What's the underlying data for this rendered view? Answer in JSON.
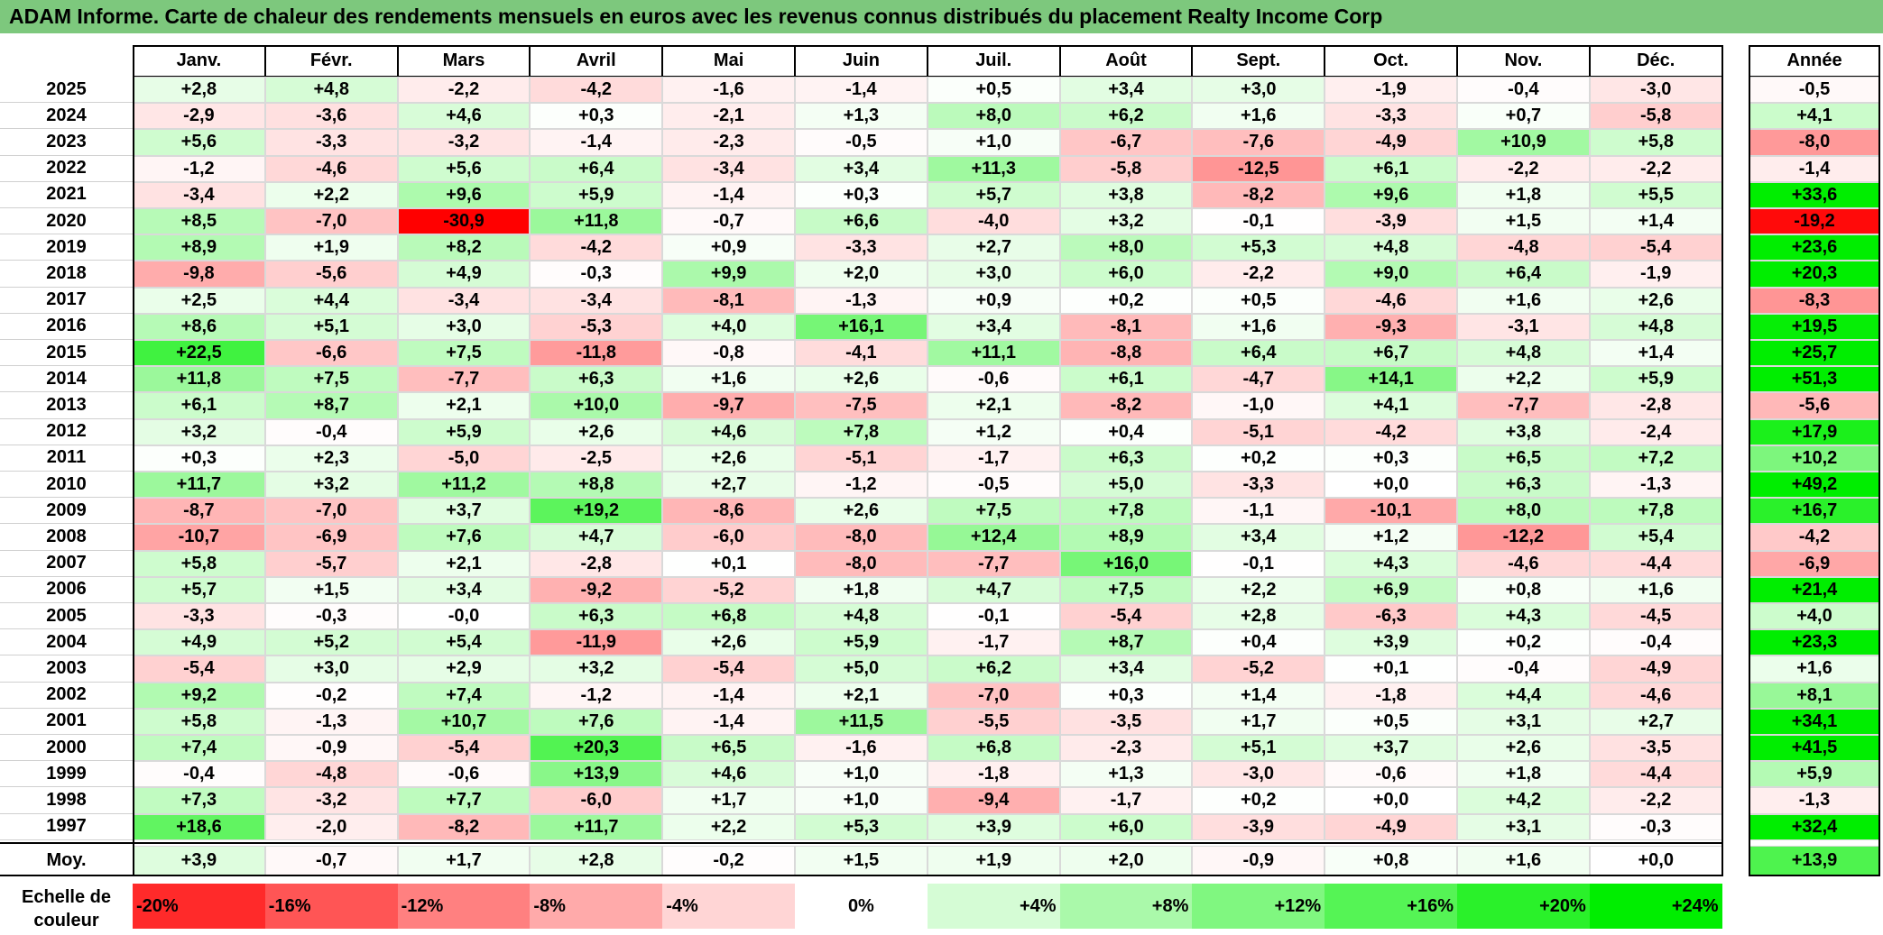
{
  "title": "ADAM Informe. Carte de chaleur des rendements mensuels en euros avec les revenus connus distribués du placement Realty Income Corp",
  "chart_data": {
    "type": "heatmap",
    "columns": [
      "Janv.",
      "Févr.",
      "Mars",
      "Avril",
      "Mai",
      "Juin",
      "Juil.",
      "Août",
      "Sept.",
      "Oct.",
      "Nov.",
      "Déc."
    ],
    "year_column": "Année",
    "rows": [
      {
        "year": "2025",
        "values": [
          "+2,8",
          "+4,8",
          "-2,2",
          "-4,2",
          "-1,6",
          "-1,4",
          "+0,5",
          "+3,4",
          "+3,0",
          "-1,9",
          "-0,4",
          "-3,0"
        ],
        "annual": "-0,5"
      },
      {
        "year": "2024",
        "values": [
          "-2,9",
          "-3,6",
          "+4,6",
          "+0,3",
          "-2,1",
          "+1,3",
          "+8,0",
          "+6,2",
          "+1,6",
          "-3,3",
          "+0,7",
          "-5,8"
        ],
        "annual": "+4,1"
      },
      {
        "year": "2023",
        "values": [
          "+5,6",
          "-3,3",
          "-3,2",
          "-1,4",
          "-2,3",
          "-0,5",
          "+1,0",
          "-6,7",
          "-7,6",
          "-4,9",
          "+10,9",
          "+5,8"
        ],
        "annual": "-8,0"
      },
      {
        "year": "2022",
        "values": [
          "-1,2",
          "-4,6",
          "+5,6",
          "+6,4",
          "-3,4",
          "+3,4",
          "+11,3",
          "-5,8",
          "-12,5",
          "+6,1",
          "-2,2",
          "-2,2"
        ],
        "annual": "-1,4"
      },
      {
        "year": "2021",
        "values": [
          "-3,4",
          "+2,2",
          "+9,6",
          "+5,9",
          "-1,4",
          "+0,3",
          "+5,7",
          "+3,8",
          "-8,2",
          "+9,6",
          "+1,8",
          "+5,5"
        ],
        "annual": "+33,6"
      },
      {
        "year": "2020",
        "values": [
          "+8,5",
          "-7,0",
          "-30,9",
          "+11,8",
          "-0,7",
          "+6,6",
          "-4,0",
          "+3,2",
          "-0,1",
          "-3,9",
          "+1,5",
          "+1,4"
        ],
        "annual": "-19,2"
      },
      {
        "year": "2019",
        "values": [
          "+8,9",
          "+1,9",
          "+8,2",
          "-4,2",
          "+0,9",
          "-3,3",
          "+2,7",
          "+8,0",
          "+5,3",
          "+4,8",
          "-4,8",
          "-5,4"
        ],
        "annual": "+23,6"
      },
      {
        "year": "2018",
        "values": [
          "-9,8",
          "-5,6",
          "+4,9",
          "-0,3",
          "+9,9",
          "+2,0",
          "+3,0",
          "+6,0",
          "-2,2",
          "+9,0",
          "+6,4",
          "-1,9"
        ],
        "annual": "+20,3"
      },
      {
        "year": "2017",
        "values": [
          "+2,5",
          "+4,4",
          "-3,4",
          "-3,4",
          "-8,1",
          "-1,3",
          "+0,9",
          "+0,2",
          "+0,5",
          "-4,6",
          "+1,6",
          "+2,6"
        ],
        "annual": "-8,3"
      },
      {
        "year": "2016",
        "values": [
          "+8,6",
          "+5,1",
          "+3,0",
          "-5,3",
          "+4,0",
          "+16,1",
          "+3,4",
          "-8,1",
          "+1,6",
          "-9,3",
          "-3,1",
          "+4,8"
        ],
        "annual": "+19,5"
      },
      {
        "year": "2015",
        "values": [
          "+22,5",
          "-6,6",
          "+7,5",
          "-11,8",
          "-0,8",
          "-4,1",
          "+11,1",
          "-8,8",
          "+6,4",
          "+6,7",
          "+4,8",
          "+1,4"
        ],
        "annual": "+25,7"
      },
      {
        "year": "2014",
        "values": [
          "+11,8",
          "+7,5",
          "-7,7",
          "+6,3",
          "+1,6",
          "+2,6",
          "-0,6",
          "+6,1",
          "-4,7",
          "+14,1",
          "+2,2",
          "+5,9"
        ],
        "annual": "+51,3"
      },
      {
        "year": "2013",
        "values": [
          "+6,1",
          "+8,7",
          "+2,1",
          "+10,0",
          "-9,7",
          "-7,5",
          "+2,1",
          "-8,2",
          "-1,0",
          "+4,1",
          "-7,7",
          "-2,8"
        ],
        "annual": "-5,6"
      },
      {
        "year": "2012",
        "values": [
          "+3,2",
          "-0,4",
          "+5,9",
          "+2,6",
          "+4,6",
          "+7,8",
          "+1,2",
          "+0,4",
          "-5,1",
          "-4,2",
          "+3,8",
          "-2,4"
        ],
        "annual": "+17,9"
      },
      {
        "year": "2011",
        "values": [
          "+0,3",
          "+2,3",
          "-5,0",
          "-2,5",
          "+2,6",
          "-5,1",
          "-1,7",
          "+6,3",
          "+0,2",
          "+0,3",
          "+6,5",
          "+7,2"
        ],
        "annual": "+10,2"
      },
      {
        "year": "2010",
        "values": [
          "+11,7",
          "+3,2",
          "+11,2",
          "+8,8",
          "+2,7",
          "-1,2",
          "-0,5",
          "+5,0",
          "-3,3",
          "+0,0",
          "+6,3",
          "-1,3"
        ],
        "annual": "+49,2"
      },
      {
        "year": "2009",
        "values": [
          "-8,7",
          "-7,0",
          "+3,7",
          "+19,2",
          "-8,6",
          "+2,6",
          "+7,5",
          "+7,8",
          "-1,1",
          "-10,1",
          "+8,0",
          "+7,8"
        ],
        "annual": "+16,7"
      },
      {
        "year": "2008",
        "values": [
          "-10,7",
          "-6,9",
          "+7,6",
          "+4,7",
          "-6,0",
          "-8,0",
          "+12,4",
          "+8,9",
          "+3,4",
          "+1,2",
          "-12,2",
          "+5,4"
        ],
        "annual": "-4,2"
      },
      {
        "year": "2007",
        "values": [
          "+5,8",
          "-5,7",
          "+2,1",
          "-2,8",
          "+0,1",
          "-8,0",
          "-7,7",
          "+16,0",
          "-0,1",
          "+4,3",
          "-4,6",
          "-4,4"
        ],
        "annual": "-6,9"
      },
      {
        "year": "2006",
        "values": [
          "+5,7",
          "+1,5",
          "+3,4",
          "-9,2",
          "-5,2",
          "+1,8",
          "+4,7",
          "+7,5",
          "+2,2",
          "+6,9",
          "+0,8",
          "+1,6"
        ],
        "annual": "+21,4"
      },
      {
        "year": "2005",
        "values": [
          "-3,3",
          "-0,3",
          "-0,0",
          "+6,3",
          "+6,8",
          "+4,8",
          "-0,1",
          "-5,4",
          "+2,8",
          "-6,3",
          "+4,3",
          "-4,5"
        ],
        "annual": "+4,0"
      },
      {
        "year": "2004",
        "values": [
          "+4,9",
          "+5,2",
          "+5,4",
          "-11,9",
          "+2,6",
          "+5,9",
          "-1,7",
          "+8,7",
          "+0,4",
          "+3,9",
          "+0,2",
          "-0,4"
        ],
        "annual": "+23,3"
      },
      {
        "year": "2003",
        "values": [
          "-5,4",
          "+3,0",
          "+2,9",
          "+3,2",
          "-5,4",
          "+5,0",
          "+6,2",
          "+3,4",
          "-5,2",
          "+0,1",
          "-0,4",
          "-4,9"
        ],
        "annual": "+1,6"
      },
      {
        "year": "2002",
        "values": [
          "+9,2",
          "-0,2",
          "+7,4",
          "-1,2",
          "-1,4",
          "+2,1",
          "-7,0",
          "+0,3",
          "+1,4",
          "-1,8",
          "+4,4",
          "-4,6"
        ],
        "annual": "+8,1"
      },
      {
        "year": "2001",
        "values": [
          "+5,8",
          "-1,3",
          "+10,7",
          "+7,6",
          "-1,4",
          "+11,5",
          "-5,5",
          "-3,5",
          "+1,7",
          "+0,5",
          "+3,1",
          "+2,7"
        ],
        "annual": "+34,1"
      },
      {
        "year": "2000",
        "values": [
          "+7,4",
          "-0,9",
          "-5,4",
          "+20,3",
          "+6,5",
          "-1,6",
          "+6,8",
          "-2,3",
          "+5,1",
          "+3,7",
          "+2,6",
          "-3,5"
        ],
        "annual": "+41,5"
      },
      {
        "year": "1999",
        "values": [
          "-0,4",
          "-4,8",
          "-0,6",
          "+13,9",
          "+4,6",
          "+1,0",
          "-1,8",
          "+1,3",
          "-3,0",
          "-0,6",
          "+1,8",
          "-4,4"
        ],
        "annual": "+5,9"
      },
      {
        "year": "1998",
        "values": [
          "+7,3",
          "-3,2",
          "+7,7",
          "-6,0",
          "+1,7",
          "+1,0",
          "-9,4",
          "-1,7",
          "+0,2",
          "+0,0",
          "+4,2",
          "-2,2"
        ],
        "annual": "-1,3"
      },
      {
        "year": "1997",
        "values": [
          "+18,6",
          "-2,0",
          "-8,2",
          "+11,7",
          "+2,2",
          "+5,3",
          "+3,9",
          "+6,0",
          "-3,9",
          "-4,9",
          "+3,1",
          "-0,3"
        ],
        "annual": "+32,4"
      }
    ],
    "average": {
      "label": "Moy.",
      "values": [
        "+3,9",
        "-0,7",
        "+1,7",
        "+2,8",
        "-0,2",
        "+1,5",
        "+1,9",
        "+2,0",
        "-0,9",
        "+0,8",
        "+1,6",
        "+0,0"
      ],
      "annual": "+13,9"
    },
    "scale": {
      "label": "Echelle de couleur",
      "steps": [
        {
          "text": "-20%",
          "value": -20,
          "align": "left"
        },
        {
          "text": "-16%",
          "value": -16,
          "align": "left"
        },
        {
          "text": "-12%",
          "value": -12,
          "align": "left"
        },
        {
          "text": "-8%",
          "value": -8,
          "align": "left"
        },
        {
          "text": "-4%",
          "value": -4,
          "align": "left"
        },
        {
          "text": "0%",
          "value": 0,
          "align": "center"
        },
        {
          "text": "+4%",
          "value": 4,
          "align": "right"
        },
        {
          "text": "+8%",
          "value": 8,
          "align": "right"
        },
        {
          "text": "+12%",
          "value": 12,
          "align": "right"
        },
        {
          "text": "+16%",
          "value": 16,
          "align": "right"
        },
        {
          "text": "+20%",
          "value": 20,
          "align": "right"
        },
        {
          "text": "+24%",
          "value": 24,
          "align": "right"
        }
      ]
    },
    "colors": {
      "negative_max": "#ff0000",
      "neutral": "#ffffff",
      "positive_max": "#00ee00",
      "title_bg": "#7dc87d"
    }
  }
}
